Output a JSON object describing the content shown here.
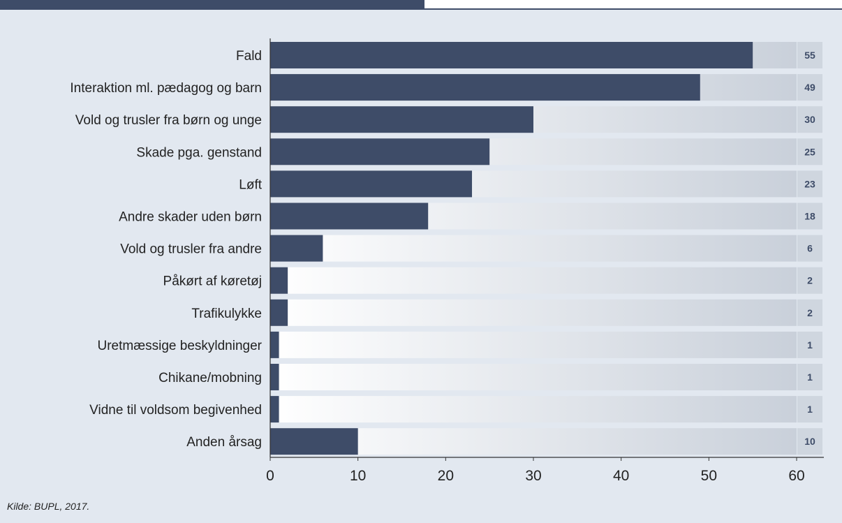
{
  "source": "Kilde: BUPL, 2017.",
  "colors": {
    "bar": "#3e4c68",
    "track_start": "#ffffff",
    "track_end": "#c9d0da",
    "value_column": "#cfd6df",
    "background": "#e2e8f0",
    "value_text": "#3e4c68"
  },
  "chart_data": {
    "type": "bar",
    "orientation": "horizontal",
    "categories": [
      "Fald",
      "Interaktion ml. pædagog og barn",
      "Vold og trusler fra børn og unge",
      "Skade pga. genstand",
      "Løft",
      "Andre skader uden børn",
      "Vold og trusler fra andre",
      "Påkørt af køretøj",
      "Trafikulykke",
      "Uretmæssige beskyldninger",
      "Chikane/mobning",
      "Vidne til voldsom begivenhed",
      "Anden årsag"
    ],
    "values": [
      55,
      49,
      30,
      25,
      23,
      18,
      6,
      2,
      2,
      1,
      1,
      1,
      10
    ],
    "value_labels": [
      "55",
      "49",
      "30",
      "25",
      "23",
      "18",
      "6",
      "2",
      "2",
      "1",
      "1",
      "1",
      "10"
    ],
    "xlim": [
      0,
      60
    ],
    "xticks": [
      0,
      10,
      20,
      30,
      40,
      50,
      60
    ],
    "xtick_labels": [
      "0",
      "10",
      "20",
      "30",
      "40",
      "50",
      "60"
    ],
    "title": "",
    "xlabel": "",
    "ylabel": "",
    "grid": false,
    "legend": "none"
  }
}
